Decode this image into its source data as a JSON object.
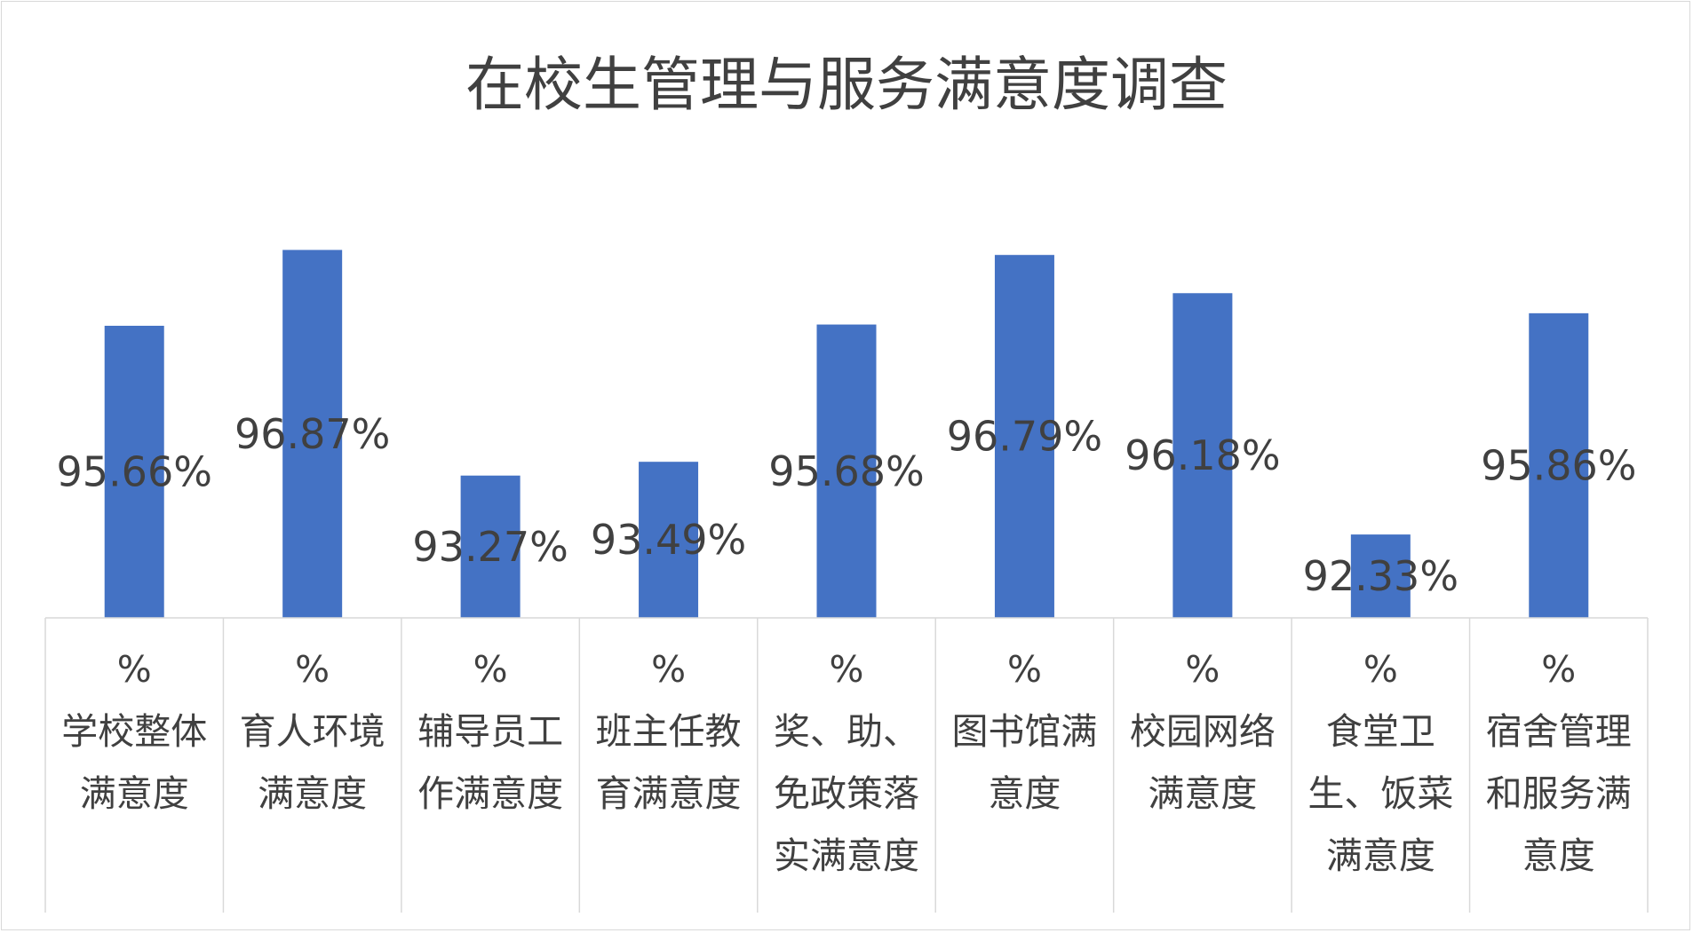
{
  "chart_data": {
    "type": "bar",
    "title": "在校生管理与服务满意度调查",
    "bar_color": "#4472C4",
    "text_color": "#404040",
    "ylim": [
      91.0,
      97.6
    ],
    "grid": false,
    "legend": "none",
    "categories": [
      [
        "%",
        "学校整体",
        "满意度"
      ],
      [
        "%",
        "育人环境",
        "满意度"
      ],
      [
        "%",
        "辅导员工",
        "作满意度"
      ],
      [
        "%",
        "班主任教",
        "育满意度"
      ],
      [
        "%",
        "奖、助、",
        "免政策落",
        "实满意度"
      ],
      [
        "%",
        "图书馆满",
        "意度"
      ],
      [
        "%",
        "校园网络",
        "满意度"
      ],
      [
        "%",
        "食堂卫",
        "生、饭菜",
        "满意度"
      ],
      [
        "%",
        "宿舍管理",
        "和服务满",
        "意度"
      ]
    ],
    "values": [
      95.66,
      96.87,
      93.27,
      93.49,
      95.68,
      96.79,
      96.18,
      92.33,
      95.86
    ],
    "data_labels": [
      "95.66%",
      "96.87%",
      "93.27%",
      "93.49%",
      "95.68%",
      "96.79%",
      "96.18%",
      "92.33%",
      "95.86%"
    ]
  }
}
